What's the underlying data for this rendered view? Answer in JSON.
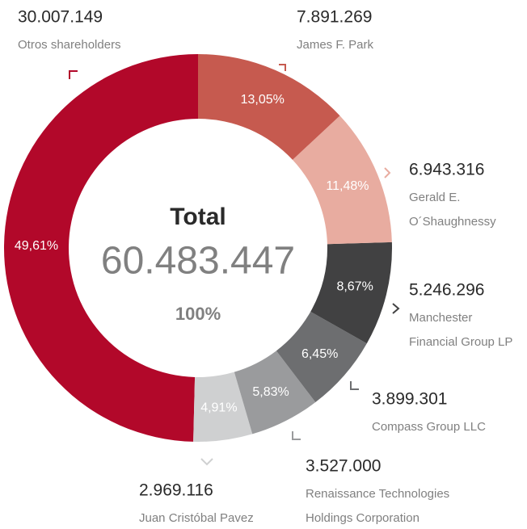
{
  "chart_data": {
    "type": "pie",
    "categories": [
      [
        "James F. Park"
      ],
      [
        "Gerald E.",
        "O´Shaughnessy"
      ],
      [
        "Manchester",
        "Financial Group LP"
      ],
      [
        "Compass Group LLC"
      ],
      [
        "Renaissance Technologies",
        "Holdings Corporation"
      ],
      [
        "Juan Cristóbal Pavez"
      ],
      [
        "Otros shareholders"
      ]
    ],
    "values": [
      13.05,
      11.48,
      8.67,
      6.45,
      5.83,
      4.91,
      49.61
    ],
    "value_labels": [
      "13,05%",
      "11,48%",
      "8,67%",
      "6,45%",
      "5,83%",
      "4,91%",
      "49,61%"
    ],
    "shares": [
      7891269,
      6943316,
      5246296,
      3899301,
      3527000,
      2969116,
      30007149
    ],
    "share_labels": [
      "7.891.269",
      "6.943.316",
      "5.246.296",
      "3.899.301",
      "3.527.000",
      "2.969.116",
      "30.007.149"
    ],
    "colors": [
      "#c65a4f",
      "#e8aca0",
      "#414142",
      "#6d6e70",
      "#9a9b9d",
      "#cfd0d1",
      "#b2082a"
    ],
    "total_title": "Total",
    "total": {
      "value": 60483447,
      "label": "60.483.447"
    },
    "total_percent": {
      "value": 100,
      "label": "100%"
    }
  }
}
